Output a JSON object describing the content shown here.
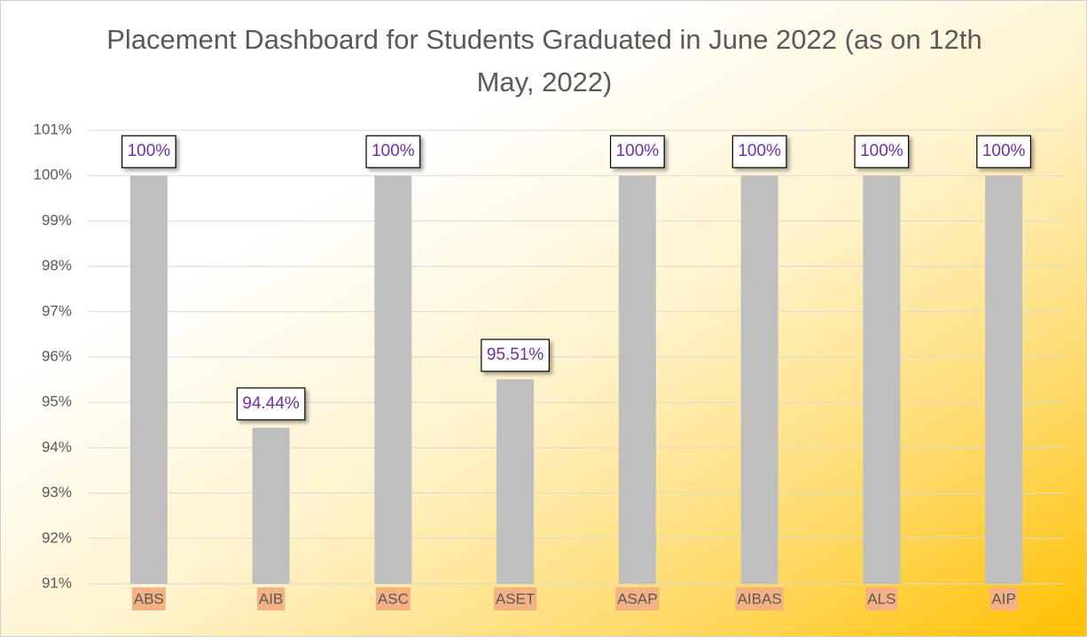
{
  "chart_data": {
    "type": "bar",
    "title": "Placement Dashboard for Students Graduated in June 2022 (as on 12th May, 2022)",
    "categories": [
      "ABS",
      "AIB",
      "ASC",
      "ASET",
      "ASAP",
      "AIBAS",
      "ALS",
      "AIP"
    ],
    "values": [
      100,
      94.44,
      100,
      95.51,
      100,
      100,
      100,
      100
    ],
    "value_labels": [
      "100%",
      "94.44%",
      "100%",
      "95.51%",
      "100%",
      "100%",
      "100%",
      "100%"
    ],
    "color": "#bfbfbf",
    "ylim": [
      91,
      101
    ],
    "yticks": [
      {
        "value": 91,
        "label": "91%"
      },
      {
        "value": 92,
        "label": "92%"
      },
      {
        "value": 93,
        "label": "93%"
      },
      {
        "value": 94,
        "label": "94%"
      },
      {
        "value": 95,
        "label": "95%"
      },
      {
        "value": 96,
        "label": "96%"
      },
      {
        "value": 97,
        "label": "97%"
      },
      {
        "value": 98,
        "label": "98%"
      },
      {
        "value": 99,
        "label": "99%"
      },
      {
        "value": 100,
        "label": "100%"
      },
      {
        "value": 101,
        "label": "101%"
      }
    ],
    "grid": true
  }
}
